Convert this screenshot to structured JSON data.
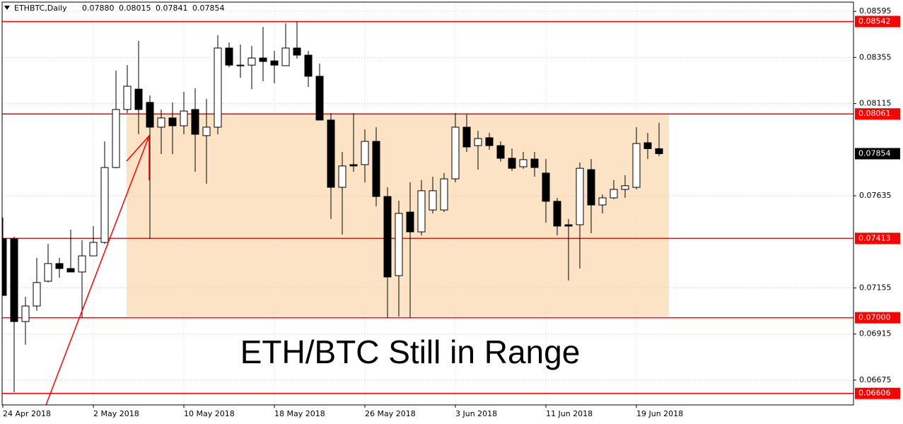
{
  "chart_data": {
    "type": "candlestick",
    "header": {
      "symbol": "ETHBTC,Daily",
      "ohlc": [
        "0.07880",
        "0.08015",
        "0.07841",
        "0.07854"
      ]
    },
    "annotation": "ETH/BTC Still in Range",
    "categories": [
      "24 Apr 2018",
      null,
      null,
      null,
      null,
      null,
      null,
      null,
      "2 May 2018",
      null,
      null,
      null,
      null,
      null,
      null,
      null,
      "10 May 2018",
      null,
      null,
      null,
      null,
      null,
      null,
      null,
      "18 May 2018",
      null,
      null,
      null,
      null,
      null,
      null,
      null,
      "26 May 2018",
      null,
      null,
      null,
      null,
      null,
      null,
      null,
      "3 Jun 2018",
      null,
      null,
      null,
      null,
      null,
      null,
      null,
      "11 Jun 2018",
      null,
      null,
      null,
      null,
      null,
      null,
      null,
      "19 Jun 2018",
      null,
      null
    ],
    "open": [
      0.07411,
      0.07411,
      0.0698,
      0.07061,
      0.0719,
      0.07282,
      0.07256,
      0.07238,
      0.07322,
      0.07392,
      0.07782,
      0.08084,
      0.0819,
      0.08121,
      0.07992,
      0.0804,
      0.07999,
      0.08084,
      0.07948,
      0.07992,
      0.08404,
      0.08315,
      0.08315,
      0.08352,
      0.08337,
      0.08312,
      0.08404,
      0.08367,
      0.08257,
      0.08029,
      0.07679,
      0.07797,
      0.07797,
      0.07918,
      0.07631,
      0.07219,
      0.0755,
      0.07447,
      0.07561,
      0.07561,
      0.07723,
      0.07992,
      0.07896,
      0.07937,
      0.07896,
      0.0783,
      0.07786,
      0.07826,
      0.07753,
      0.07606,
      0.07484,
      0.07484,
      0.07771,
      0.07587,
      0.07624,
      0.07668,
      0.07679,
      0.07911,
      0.0788
    ],
    "high": [
      0.07521,
      0.07422,
      0.07109,
      0.07311,
      0.07385,
      0.07311,
      0.07458,
      0.07403,
      0.07477,
      0.07918,
      0.08286,
      0.08315,
      0.08441,
      0.08157,
      0.08084,
      0.08121,
      0.08176,
      0.08194,
      0.08139,
      0.0847,
      0.08433,
      0.08422,
      0.08415,
      0.08514,
      0.08389,
      0.08532,
      0.08542,
      0.08389,
      0.08323,
      0.08065,
      0.07863,
      0.08065,
      0.07981,
      0.07992,
      0.07679,
      0.07609,
      0.07705,
      0.07716,
      0.07734,
      0.07753,
      0.08065,
      0.08058,
      0.07973,
      0.07962,
      0.07918,
      0.07881,
      0.07863,
      0.07863,
      0.07826,
      0.07624,
      0.07514,
      0.07808,
      0.07826,
      0.07642,
      0.07716,
      0.07742,
      0.07992,
      0.07962,
      0.08015
    ],
    "low": [
      0.07116,
      0.06612,
      0.06859,
      0.07036,
      0.07183,
      0.07208,
      0.07238,
      0.06999,
      0.07322,
      0.07385,
      0.07778,
      0.08065,
      0.07955,
      0.07411,
      0.07852,
      0.07852,
      0.07955,
      0.0776,
      0.07698,
      0.07955,
      0.08304,
      0.08249,
      0.0819,
      0.08231,
      0.0822,
      0.08312,
      0.08349,
      0.08201,
      0.08029,
      0.07514,
      0.07433,
      0.0776,
      0.07705,
      0.0758,
      0.06999,
      0.07006,
      0.06999,
      0.07429,
      0.07543,
      0.0755,
      0.07705,
      0.07863,
      0.07771,
      0.07874,
      0.07812,
      0.07764,
      0.07775,
      0.07734,
      0.07495,
      0.07429,
      0.07194,
      0.07256,
      0.0744,
      0.07543,
      0.07617,
      0.07624,
      0.07668,
      0.07826,
      0.07841
    ],
    "close": [
      0.07116,
      0.0698,
      0.07061,
      0.07183,
      0.07282,
      0.07256,
      0.07238,
      0.07322,
      0.07392,
      0.07782,
      0.08084,
      0.08205,
      0.08084,
      0.07992,
      0.0804,
      0.07999,
      0.08076,
      0.07955,
      0.07992,
      0.08404,
      0.08315,
      0.08312,
      0.08352,
      0.08334,
      0.08315,
      0.08404,
      0.08367,
      0.08257,
      0.08029,
      0.07679,
      0.0779,
      0.0779,
      0.07918,
      0.07631,
      0.07212,
      0.07543,
      0.07447,
      0.07661,
      0.07661,
      0.07723,
      0.07992,
      0.07889,
      0.07933,
      0.07896,
      0.0783,
      0.07778,
      0.07823,
      0.07782,
      0.07606,
      0.07477,
      0.07477,
      0.07778,
      0.07587,
      0.07624,
      0.07668,
      0.07687,
      0.07907,
      0.0788,
      0.07854
    ],
    "ylim": [
      0.06546,
      0.08643
    ],
    "yticks": [
      0.08595,
      0.08355,
      0.08115,
      0.07635,
      0.07155,
      0.06915,
      0.06675
    ],
    "levels": [
      0.08542,
      0.08061,
      0.07413,
      {
        "value": 0.07,
        "label": "0.07000"
      },
      0.06606
    ],
    "range_box": [
      0.08061,
      0.07006
    ],
    "up_color": "#ffffff",
    "down_color": "#000000",
    "level_color": "#ff0000",
    "range_color": "#fde3c6",
    "grid": true
  }
}
